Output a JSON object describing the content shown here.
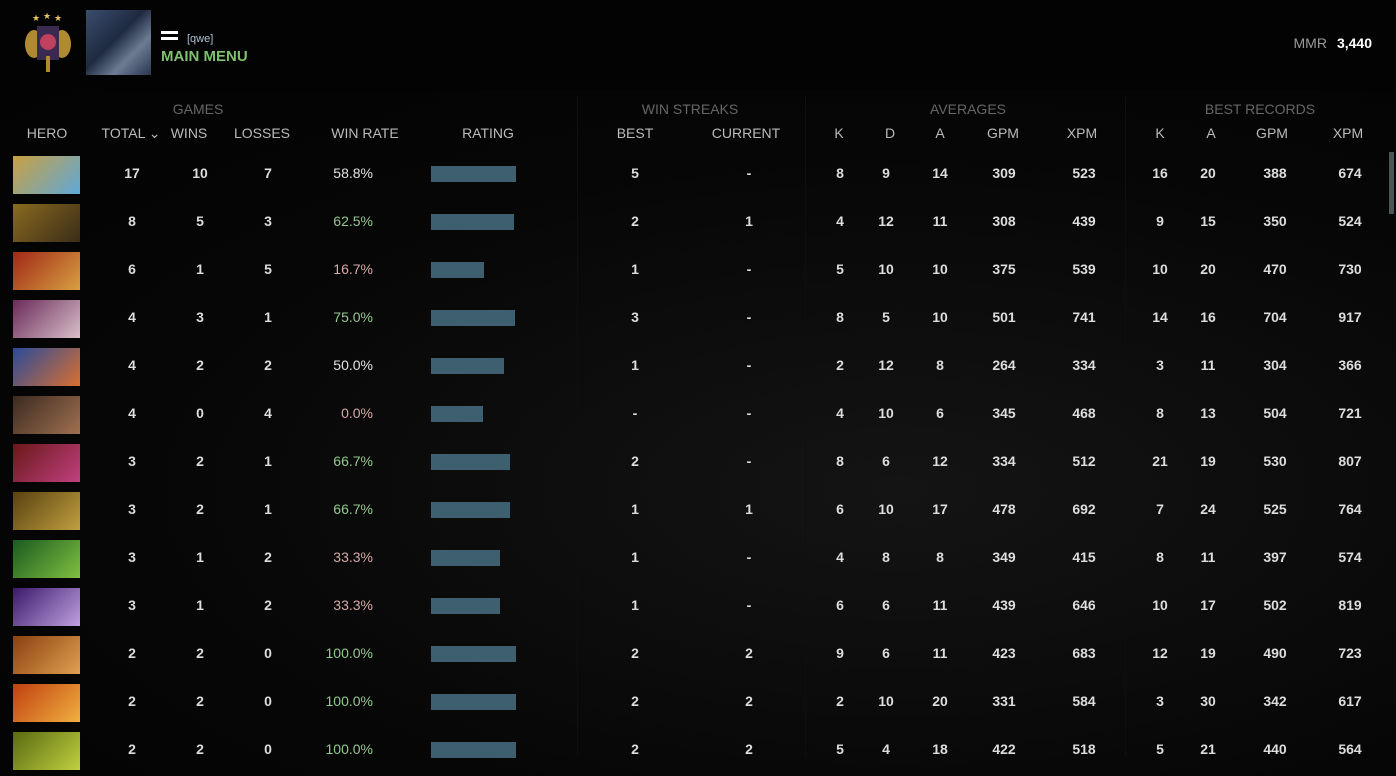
{
  "header": {
    "tag": "[qwe]",
    "main_menu": "MAIN MENU",
    "mmr_label": "MMR",
    "mmr_value": "3,440"
  },
  "groups": {
    "games": "GAMES",
    "win_streaks": "WIN STREAKS",
    "averages": "AVERAGES",
    "best_records": "BEST RECORDS"
  },
  "columns": {
    "hero": "HERO",
    "total": "TOTAL",
    "sort_icon": "⌄",
    "wins": "WINS",
    "losses": "LOSSES",
    "win_rate": "WIN RATE",
    "rating": "RATING",
    "best": "BEST",
    "current": "CURRENT",
    "k": "K",
    "d": "D",
    "a": "A",
    "gpm": "GPM",
    "xpm": "XPM",
    "best_k": "K",
    "best_a": "A",
    "best_gpm": "GPM",
    "best_xpm": "XPM"
  },
  "colors": {
    "positive": "#93c98f",
    "negative": "#d9a9a7",
    "neutral": "#e2e2e2",
    "rating_bar": "#3e5f70"
  },
  "rows": [
    {
      "portrait": [
        "#c9a040",
        "#5fa8d8"
      ],
      "total": "17",
      "wins": "10",
      "losses": "7",
      "win_rate": "58.8%",
      "tone": "neutral",
      "rating": 0.99,
      "best": "5",
      "current": "-",
      "k": "8",
      "d": "9",
      "a": "14",
      "gpm": "309",
      "xpm": "523",
      "bk": "16",
      "ba": "20",
      "bgpm": "388",
      "bxpm": "674"
    },
    {
      "portrait": [
        "#8a6a20",
        "#3a2c18"
      ],
      "total": "8",
      "wins": "5",
      "losses": "3",
      "win_rate": "62.5%",
      "tone": "positive",
      "rating": 0.97,
      "best": "2",
      "current": "1",
      "k": "4",
      "d": "12",
      "a": "11",
      "gpm": "308",
      "xpm": "439",
      "bk": "9",
      "ba": "15",
      "bgpm": "350",
      "bxpm": "524"
    },
    {
      "portrait": [
        "#a02818",
        "#d8a040"
      ],
      "total": "6",
      "wins": "1",
      "losses": "5",
      "win_rate": "16.7%",
      "tone": "negative",
      "rating": 0.62,
      "best": "1",
      "current": "-",
      "k": "5",
      "d": "10",
      "a": "10",
      "gpm": "375",
      "xpm": "539",
      "bk": "10",
      "ba": "20",
      "bgpm": "470",
      "bxpm": "730"
    },
    {
      "portrait": [
        "#6a2a5a",
        "#d8c0c8"
      ],
      "total": "4",
      "wins": "3",
      "losses": "1",
      "win_rate": "75.0%",
      "tone": "positive",
      "rating": 0.98,
      "best": "3",
      "current": "-",
      "k": "8",
      "d": "5",
      "a": "10",
      "gpm": "501",
      "xpm": "741",
      "bk": "14",
      "ba": "16",
      "bgpm": "704",
      "bxpm": "917"
    },
    {
      "portrait": [
        "#2a4a9a",
        "#d87030"
      ],
      "total": "4",
      "wins": "2",
      "losses": "2",
      "win_rate": "50.0%",
      "tone": "neutral",
      "rating": 0.85,
      "best": "1",
      "current": "-",
      "k": "2",
      "d": "12",
      "a": "8",
      "gpm": "264",
      "xpm": "334",
      "bk": "3",
      "ba": "11",
      "bgpm": "304",
      "bxpm": "366"
    },
    {
      "portrait": [
        "#3a2a20",
        "#a07050"
      ],
      "total": "4",
      "wins": "0",
      "losses": "4",
      "win_rate": "0.0%",
      "tone": "negative",
      "rating": 0.61,
      "best": "-",
      "current": "-",
      "k": "4",
      "d": "10",
      "a": "6",
      "gpm": "345",
      "xpm": "468",
      "bk": "8",
      "ba": "13",
      "bgpm": "504",
      "bxpm": "721"
    },
    {
      "portrait": [
        "#6a1818",
        "#c04080"
      ],
      "total": "3",
      "wins": "2",
      "losses": "1",
      "win_rate": "66.7%",
      "tone": "positive",
      "rating": 0.92,
      "best": "2",
      "current": "-",
      "k": "8",
      "d": "6",
      "a": "12",
      "gpm": "334",
      "xpm": "512",
      "bk": "21",
      "ba": "19",
      "bgpm": "530",
      "bxpm": "807"
    },
    {
      "portrait": [
        "#5a4010",
        "#c0a040"
      ],
      "total": "3",
      "wins": "2",
      "losses": "1",
      "win_rate": "66.7%",
      "tone": "positive",
      "rating": 0.92,
      "best": "1",
      "current": "1",
      "k": "6",
      "d": "10",
      "a": "17",
      "gpm": "478",
      "xpm": "692",
      "bk": "7",
      "ba": "24",
      "bgpm": "525",
      "bxpm": "764"
    },
    {
      "portrait": [
        "#1a5a20",
        "#80c040"
      ],
      "total": "3",
      "wins": "1",
      "losses": "2",
      "win_rate": "33.3%",
      "tone": "negative",
      "rating": 0.8,
      "best": "1",
      "current": "-",
      "k": "4",
      "d": "8",
      "a": "8",
      "gpm": "349",
      "xpm": "415",
      "bk": "8",
      "ba": "11",
      "bgpm": "397",
      "bxpm": "574"
    },
    {
      "portrait": [
        "#3a1a6a",
        "#c0a0e0"
      ],
      "total": "3",
      "wins": "1",
      "losses": "2",
      "win_rate": "33.3%",
      "tone": "negative",
      "rating": 0.8,
      "best": "1",
      "current": "-",
      "k": "6",
      "d": "6",
      "a": "11",
      "gpm": "439",
      "xpm": "646",
      "bk": "10",
      "ba": "17",
      "bgpm": "502",
      "bxpm": "819"
    },
    {
      "portrait": [
        "#8a4010",
        "#e0a050"
      ],
      "total": "2",
      "wins": "2",
      "losses": "0",
      "win_rate": "100.0%",
      "tone": "positive",
      "rating": 0.99,
      "best": "2",
      "current": "2",
      "k": "9",
      "d": "6",
      "a": "11",
      "gpm": "423",
      "xpm": "683",
      "bk": "12",
      "ba": "19",
      "bgpm": "490",
      "bxpm": "723"
    },
    {
      "portrait": [
        "#c04010",
        "#f0b040"
      ],
      "total": "2",
      "wins": "2",
      "losses": "0",
      "win_rate": "100.0%",
      "tone": "positive",
      "rating": 0.99,
      "best": "2",
      "current": "2",
      "k": "2",
      "d": "10",
      "a": "20",
      "gpm": "331",
      "xpm": "584",
      "bk": "3",
      "ba": "30",
      "bgpm": "342",
      "bxpm": "617"
    },
    {
      "portrait": [
        "#5a6a10",
        "#c0d040"
      ],
      "total": "2",
      "wins": "2",
      "losses": "0",
      "win_rate": "100.0%",
      "tone": "positive",
      "rating": 0.99,
      "best": "2",
      "current": "2",
      "k": "5",
      "d": "4",
      "a": "18",
      "gpm": "422",
      "xpm": "518",
      "bk": "5",
      "ba": "21",
      "bgpm": "440",
      "bxpm": "564"
    }
  ]
}
